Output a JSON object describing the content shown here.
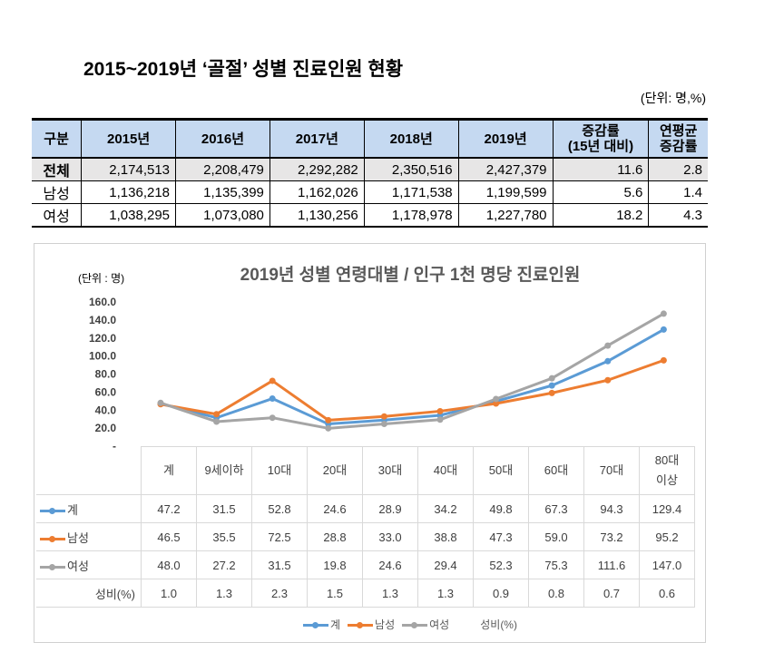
{
  "title": "2015~2019년 ‘골절’ 성별 진료인원 현황",
  "unit": "(단위:  명,%)",
  "summary_table": {
    "headers": [
      "구분",
      "2015년",
      "2016년",
      "2017년",
      "2018년",
      "2019년",
      "증감률\n(15년 대비)",
      "연평균\n증감률"
    ],
    "rows": [
      [
        "전체",
        "2,174,513",
        "2,208,479",
        "2,292,282",
        "2,350,516",
        "2,427,379",
        "11.6",
        "2.8"
      ],
      [
        "남성",
        "1,136,218",
        "1,135,399",
        "1,162,026",
        "1,171,538",
        "1,199,599",
        "5.6",
        "1.4"
      ],
      [
        "여성",
        "1,038,295",
        "1,073,080",
        "1,130,256",
        "1,178,978",
        "1,227,780",
        "18.2",
        "4.3"
      ]
    ]
  },
  "chart_data": {
    "type": "line",
    "title": "2019년 성별 연령대별 / 인구 1천 명당 진료인원",
    "unit_label": "(단위 : 명)",
    "categories": [
      "계",
      "9세이하",
      "10대",
      "20대",
      "30대",
      "40대",
      "50대",
      "60대",
      "70대",
      "80대\n이상"
    ],
    "series": [
      {
        "name": "계",
        "color": "#5b9bd5",
        "values": [
          47.2,
          31.5,
          52.8,
          24.6,
          28.9,
          34.2,
          49.8,
          67.3,
          94.3,
          129.4
        ]
      },
      {
        "name": "남성",
        "color": "#ed7d31",
        "values": [
          46.5,
          35.5,
          72.5,
          28.8,
          33.0,
          38.8,
          47.3,
          59.0,
          73.2,
          95.2
        ]
      },
      {
        "name": "여성",
        "color": "#a5a5a5",
        "values": [
          48.0,
          27.2,
          31.5,
          19.8,
          24.6,
          29.4,
          52.3,
          75.3,
          111.6,
          147.0
        ]
      }
    ],
    "extra_row": {
      "name": "성비(%)",
      "values": [
        "1.0",
        "1.3",
        "2.3",
        "1.5",
        "1.3",
        "1.3",
        "0.9",
        "0.8",
        "0.7",
        "0.6"
      ]
    },
    "ylim": [
      0,
      160
    ],
    "yticks": [
      "-",
      "20.0",
      "40.0",
      "60.0",
      "80.0",
      "100.0",
      "120.0",
      "140.0",
      "160.0"
    ],
    "legend": [
      "계",
      "남성",
      "여성",
      "성비(%)"
    ],
    "legend_position": "bottom"
  }
}
